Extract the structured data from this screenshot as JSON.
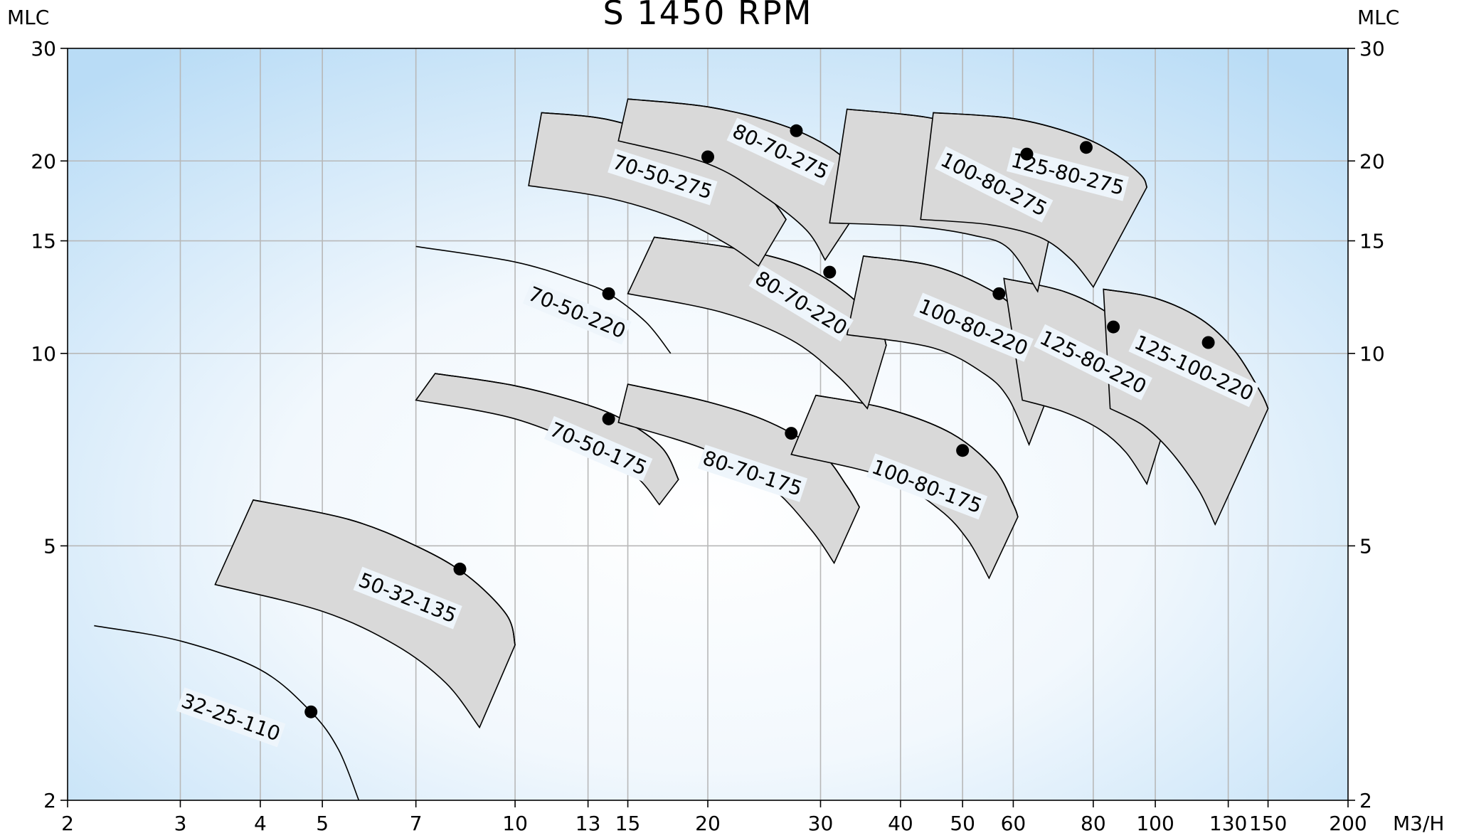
{
  "chart_data": {
    "type": "line",
    "title": "S 1450 RPM",
    "ylabel_left": "MLC",
    "ylabel_right": "MLC",
    "xlabel": "M3/H",
    "x_scale": "log",
    "y_scale": "log",
    "xlim": [
      2,
      200
    ],
    "ylim": [
      2,
      30
    ],
    "x_ticks": [
      2,
      3,
      4,
      5,
      7,
      10,
      13,
      15,
      20,
      30,
      40,
      50,
      60,
      80,
      100,
      130,
      150,
      200
    ],
    "y_ticks": [
      2,
      5,
      10,
      15,
      20,
      30
    ],
    "grid": true,
    "colors": {
      "background_edge": "#b9dcf6",
      "background_center": "#ffffff",
      "band_fill": "#d9d9d9",
      "curve": "#000000",
      "label_background": "#eef5fb"
    },
    "series": [
      {
        "label": "32-25-110",
        "kind": "curve",
        "upper": [
          [
            2.2,
            3.75
          ],
          [
            3.0,
            3.55
          ],
          [
            4.0,
            3.2
          ],
          [
            4.8,
            2.75
          ],
          [
            5.3,
            2.4
          ],
          [
            5.7,
            2.0
          ]
        ],
        "point": [
          4.8,
          2.75
        ],
        "label_at": [
          3.6,
          2.7
        ]
      },
      {
        "label": "50-32-135",
        "kind": "band",
        "upper": [
          [
            3.9,
            5.9
          ],
          [
            5.5,
            5.5
          ],
          [
            7.0,
            5.0
          ],
          [
            8.4,
            4.5
          ],
          [
            9.7,
            3.9
          ],
          [
            10.0,
            3.5
          ]
        ],
        "lower": [
          [
            3.4,
            4.35
          ],
          [
            5.0,
            3.95
          ],
          [
            6.5,
            3.5
          ],
          [
            7.8,
            3.05
          ],
          [
            8.8,
            2.6
          ]
        ],
        "point": [
          8.2,
          4.6
        ],
        "label_at": [
          6.8,
          4.15
        ]
      },
      {
        "label": "70-50-175",
        "kind": "band",
        "upper": [
          [
            7.5,
            9.3
          ],
          [
            10.0,
            8.9
          ],
          [
            13.0,
            8.3
          ],
          [
            15.0,
            7.8
          ],
          [
            17.0,
            7.1
          ],
          [
            18.0,
            6.35
          ]
        ],
        "lower": [
          [
            7.0,
            8.45
          ],
          [
            10.0,
            7.9
          ],
          [
            13.5,
            7.0
          ],
          [
            15.5,
            6.4
          ],
          [
            16.8,
            5.8
          ]
        ],
        "point": [
          14.0,
          7.9
        ],
        "label_at": [
          13.5,
          7.1
        ]
      },
      {
        "label": "80-70-175",
        "kind": "band",
        "upper": [
          [
            15.0,
            8.95
          ],
          [
            20.0,
            8.4
          ],
          [
            25.0,
            7.8
          ],
          [
            30.0,
            7.0
          ],
          [
            33.0,
            6.2
          ],
          [
            34.5,
            5.75
          ]
        ],
        "lower": [
          [
            14.5,
            7.8
          ],
          [
            20.0,
            7.05
          ],
          [
            25.0,
            6.2
          ],
          [
            29.0,
            5.3
          ],
          [
            31.5,
            4.7
          ]
        ],
        "point": [
          27.0,
          7.5
        ],
        "label_at": [
          23.5,
          6.5
        ]
      },
      {
        "label": "100-80-175",
        "kind": "band",
        "upper": [
          [
            29.5,
            8.6
          ],
          [
            38.0,
            8.2
          ],
          [
            48.0,
            7.5
          ],
          [
            56.0,
            6.6
          ],
          [
            60.0,
            5.8
          ],
          [
            61.0,
            5.55
          ]
        ],
        "lower": [
          [
            27.0,
            6.95
          ],
          [
            38.0,
            6.4
          ],
          [
            46.0,
            5.7
          ],
          [
            51.0,
            5.1
          ],
          [
            55.0,
            4.45
          ]
        ],
        "point": [
          50.0,
          7.05
        ],
        "label_at": [
          44.0,
          6.2
        ]
      },
      {
        "label": "70-50-220",
        "kind": "curve",
        "upper": [
          [
            7.0,
            14.7
          ],
          [
            10.0,
            13.9
          ],
          [
            12.5,
            13.0
          ],
          [
            14.0,
            12.4
          ],
          [
            16.0,
            11.2
          ],
          [
            17.5,
            10.0
          ]
        ],
        "point": [
          14.0,
          12.4
        ],
        "label_at": [
          12.5,
          11.6
        ]
      },
      {
        "label": "80-70-220",
        "kind": "band",
        "upper": [
          [
            16.5,
            15.2
          ],
          [
            22.0,
            14.6
          ],
          [
            28.0,
            13.7
          ],
          [
            33.0,
            12.4
          ],
          [
            37.0,
            11.0
          ],
          [
            38.0,
            10.3
          ]
        ],
        "lower": [
          [
            15.0,
            12.4
          ],
          [
            21.0,
            11.6
          ],
          [
            27.0,
            10.5
          ],
          [
            32.0,
            9.2
          ],
          [
            35.5,
            8.2
          ]
        ],
        "point": [
          31.0,
          13.4
        ],
        "label_at": [
          28.0,
          12.0
        ]
      },
      {
        "label": "100-80-220",
        "kind": "band",
        "upper": [
          [
            35.0,
            14.2
          ],
          [
            45.0,
            13.7
          ],
          [
            55.0,
            12.6
          ],
          [
            62.0,
            11.5
          ],
          [
            69.0,
            10.2
          ],
          [
            71.0,
            9.6
          ]
        ],
        "lower": [
          [
            33.0,
            10.7
          ],
          [
            45.0,
            10.2
          ],
          [
            54.0,
            9.3
          ],
          [
            59.0,
            8.5
          ],
          [
            63.5,
            7.2
          ]
        ],
        "point": [
          57.0,
          12.4
        ],
        "label_at": [
          52.0,
          11.0
        ]
      },
      {
        "label": "125-80-220",
        "kind": "band",
        "upper": [
          [
            58.0,
            13.1
          ],
          [
            72.0,
            12.5
          ],
          [
            85.0,
            11.5
          ],
          [
            95.0,
            10.3
          ],
          [
            103.0,
            9.1
          ],
          [
            106.0,
            8.3
          ]
        ],
        "lower": [
          [
            62.0,
            8.45
          ],
          [
            72.0,
            8.1
          ],
          [
            82.0,
            7.6
          ],
          [
            90.0,
            7.0
          ],
          [
            97.0,
            6.25
          ]
        ],
        "point": [
          86.0,
          11.0
        ],
        "label_at": [
          80.0,
          9.7
        ]
      },
      {
        "label": "125-100-220",
        "kind": "band",
        "upper": [
          [
            83.0,
            12.6
          ],
          [
            100.0,
            12.2
          ],
          [
            118.0,
            11.3
          ],
          [
            133.0,
            10.1
          ],
          [
            146.0,
            8.7
          ],
          [
            150.0,
            8.2
          ]
        ],
        "lower": [
          [
            85.0,
            8.2
          ],
          [
            96.0,
            7.7
          ],
          [
            106.0,
            7.0
          ],
          [
            117.0,
            6.1
          ],
          [
            124.0,
            5.4
          ]
        ],
        "point": [
          121.0,
          10.4
        ],
        "label_at": [
          115.0,
          9.5
        ]
      },
      {
        "label": "70-50-275",
        "kind": "band",
        "upper": [
          [
            11.0,
            23.8
          ],
          [
            14.0,
            23.2
          ],
          [
            18.0,
            21.4
          ],
          [
            22.0,
            19.5
          ],
          [
            25.0,
            17.5
          ],
          [
            26.5,
            16.2
          ]
        ],
        "lower": [
          [
            10.5,
            18.3
          ],
          [
            14.0,
            17.5
          ],
          [
            18.0,
            16.2
          ],
          [
            21.5,
            14.8
          ],
          [
            24.0,
            13.7
          ]
        ],
        "point": [
          20.0,
          20.3
        ],
        "label_at": [
          17.0,
          18.9
        ]
      },
      {
        "label": "80-70-275",
        "kind": "band",
        "upper": [
          [
            15.0,
            25.0
          ],
          [
            20.0,
            24.3
          ],
          [
            26.0,
            22.8
          ],
          [
            31.0,
            21.0
          ],
          [
            35.0,
            18.9
          ],
          [
            36.0,
            18.0
          ]
        ],
        "lower": [
          [
            14.5,
            21.5
          ],
          [
            20.0,
            19.8
          ],
          [
            24.5,
            17.6
          ],
          [
            28.5,
            15.6
          ],
          [
            30.5,
            14.0
          ]
        ],
        "point": [
          27.5,
          22.3
        ],
        "label_at": [
          26.0,
          20.7
        ]
      },
      {
        "label": "100-80-275",
        "kind": "band",
        "upper": [
          [
            33.0,
            24.1
          ],
          [
            44.0,
            23.4
          ],
          [
            55.0,
            22.1
          ],
          [
            62.0,
            20.8
          ],
          [
            68.0,
            19.1
          ],
          [
            70.0,
            17.0
          ]
        ],
        "lower": [
          [
            31.0,
            16.0
          ],
          [
            42.0,
            15.8
          ],
          [
            52.0,
            15.3
          ],
          [
            59.0,
            14.6
          ],
          [
            65.5,
            12.5
          ]
        ],
        "point": [
          63.0,
          20.5
        ],
        "label_at": [
          56.0,
          18.4
        ]
      },
      {
        "label": "125-80-275",
        "kind": "band",
        "upper": [
          [
            45.0,
            23.8
          ],
          [
            60.0,
            23.3
          ],
          [
            75.0,
            22.0
          ],
          [
            86.0,
            20.6
          ],
          [
            95.0,
            19.0
          ],
          [
            97.0,
            18.2
          ]
        ],
        "lower": [
          [
            43.0,
            16.2
          ],
          [
            55.0,
            15.9
          ],
          [
            66.0,
            15.2
          ],
          [
            74.0,
            14.0
          ],
          [
            80.0,
            12.7
          ]
        ],
        "point": [
          78.0,
          21.0
        ],
        "label_at": [
          73.0,
          19.1
        ]
      }
    ]
  }
}
